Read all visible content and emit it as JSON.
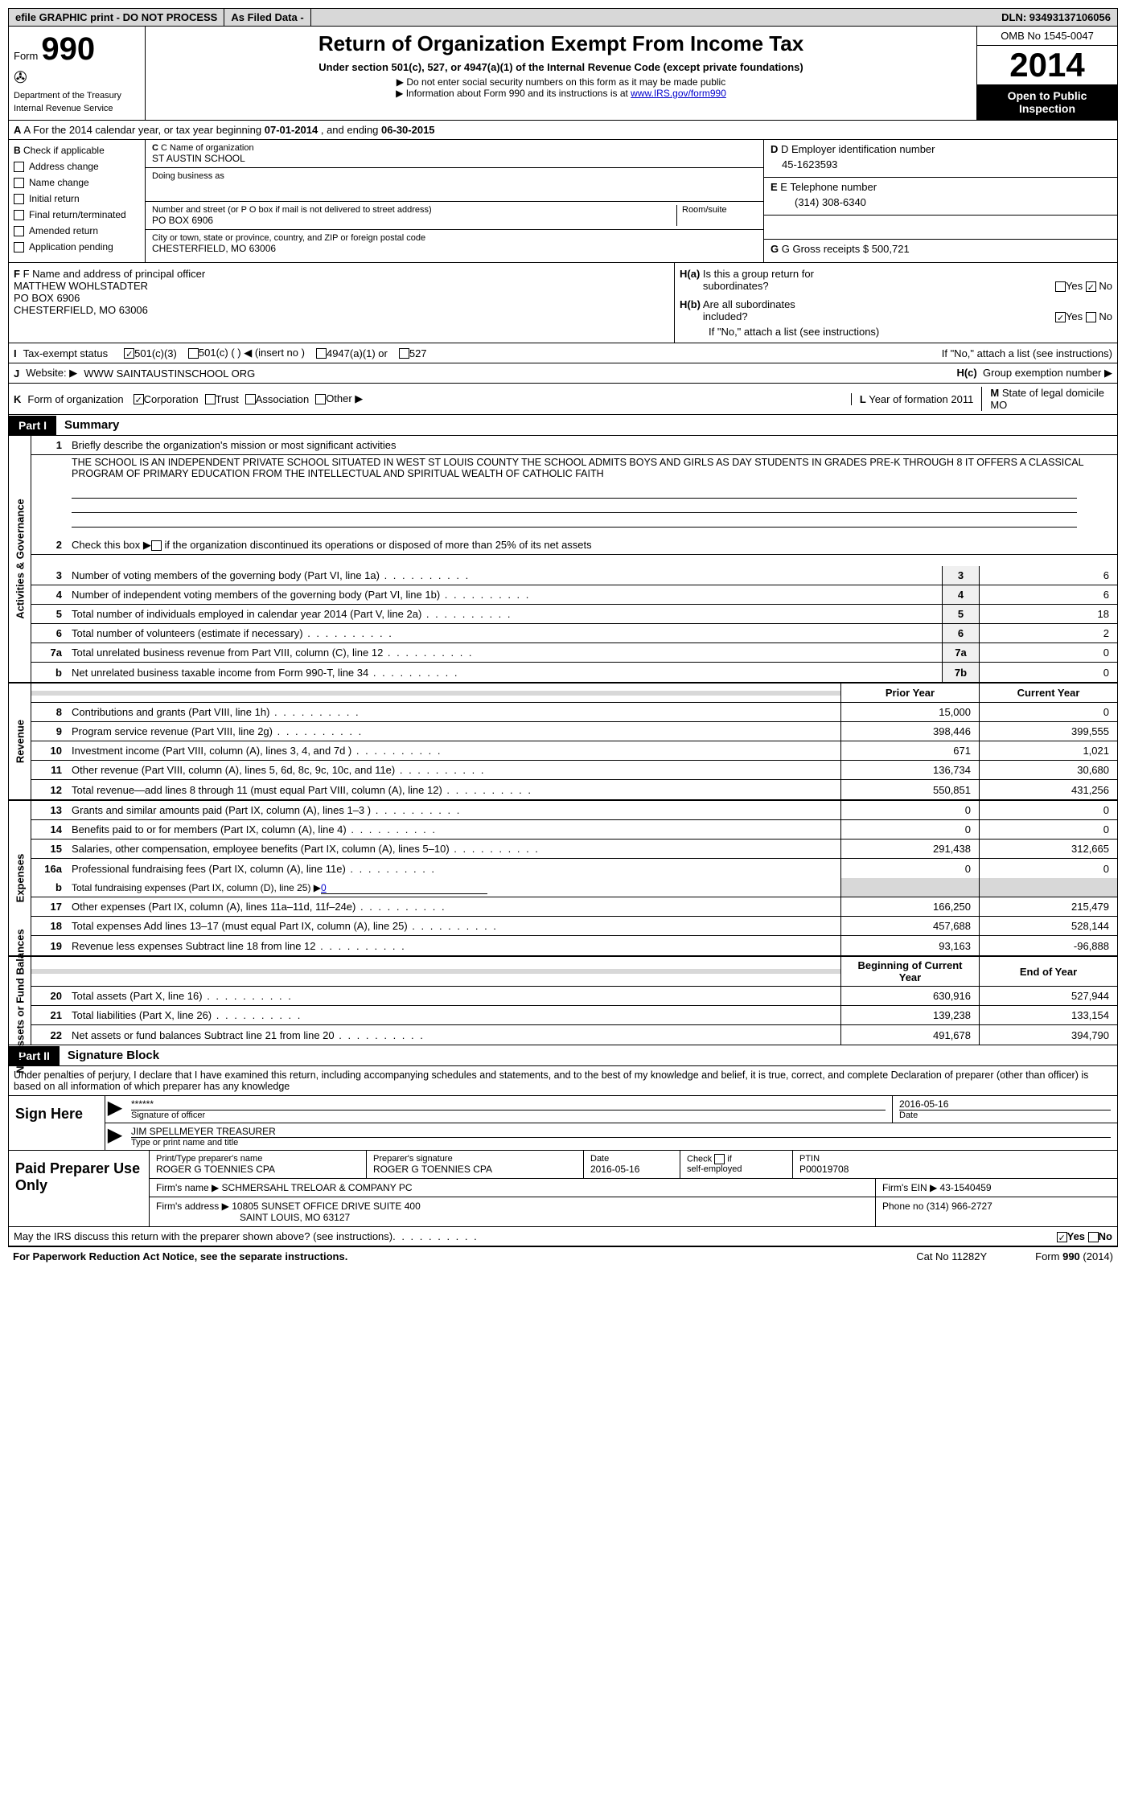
{
  "topbar": {
    "efile": "efile GRAPHIC print - DO NOT PROCESS",
    "asfiled": "As Filed Data -",
    "dln": "DLN: 93493137106056"
  },
  "header": {
    "form_label": "Form",
    "form_num": "990",
    "dept1": "Department of the Treasury",
    "dept2": "Internal Revenue Service",
    "title": "Return of Organization Exempt From Income Tax",
    "sub": "Under section 501(c), 527, or 4947(a)(1) of the Internal Revenue Code (except private foundations)",
    "note1": "▶ Do not enter social security numbers on this form as it may be made public",
    "note2_a": "▶ Information about Form 990 and its instructions is at ",
    "note2_link": "www.IRS.gov/form990",
    "omb": "OMB No 1545-0047",
    "year": "2014",
    "inspection": "Open to Public Inspection"
  },
  "section_a": {
    "text_a": "A For the 2014 calendar year, or tax year beginning ",
    "begin": "07-01-2014",
    "text_b": " , and ending ",
    "end": "06-30-2015"
  },
  "section_b": {
    "label": "B",
    "check": "Check if applicable",
    "items": [
      "Address change",
      "Name change",
      "Initial return",
      "Final return/terminated",
      "Amended return",
      "Application pending"
    ]
  },
  "section_c": {
    "label_c": "C Name of organization",
    "name": "ST AUSTIN SCHOOL",
    "dba_label": "Doing business as",
    "addr_label": "Number and street (or P O  box if mail is not delivered to street address)",
    "room_label": "Room/suite",
    "addr": "PO BOX 6906",
    "city_label": "City or town, state or province, country, and ZIP or foreign postal code",
    "city": "CHESTERFIELD, MO  63006"
  },
  "section_d": {
    "label": "D Employer identification number",
    "ein": "45-1623593",
    "tel_label": "E Telephone number",
    "tel": "(314) 308-6340",
    "gross_label": "G Gross receipts $ ",
    "gross": "500,721"
  },
  "section_f": {
    "label": "F  Name and address of principal officer",
    "name": "MATTHEW WOHLSTADTER",
    "addr1": "PO BOX 6906",
    "addr2": "CHESTERFIELD, MO  63006"
  },
  "section_h": {
    "ha": "H(a)  Is this a group return for subordinates?",
    "hb": "H(b)  Are all subordinates included?",
    "hb_note": "If \"No,\" attach a list  (see instructions)",
    "hc": "Group exemption number ▶"
  },
  "row_i": {
    "label": "I",
    "text": "Tax-exempt status",
    "opts": [
      "501(c)(3)",
      "501(c) (  ) ◀ (insert no )",
      "4947(a)(1) or",
      "527"
    ]
  },
  "row_j": {
    "label": "J",
    "text": "Website: ▶",
    "url": "WWW SAINTAUSTINSCHOOL ORG"
  },
  "row_k": {
    "label": "K",
    "text": "Form of organization",
    "opts": [
      "Corporation",
      "Trust",
      "Association",
      "Other ▶"
    ],
    "l_label": "L",
    "l_text": "Year of formation",
    "l_val": "2011",
    "m_label": "M",
    "m_text": "State of legal domicile",
    "m_val": "MO"
  },
  "part1": {
    "tag": "Part I",
    "title": "Summary"
  },
  "summary": {
    "gov_label": "Activities & Governance",
    "rev_label": "Revenue",
    "exp_label": "Expenses",
    "net_label": "Net Assets or Fund Balances",
    "mission_label": "Briefly describe the organization's mission or most significant activities",
    "mission": "THE SCHOOL IS AN INDEPENDENT PRIVATE SCHOOL SITUATED IN WEST ST LOUIS COUNTY  THE SCHOOL ADMITS BOYS AND GIRLS AS DAY STUDENTS IN GRADES PRE-K THROUGH 8  IT OFFERS A CLASSICAL PROGRAM OF PRIMARY EDUCATION FROM THE INTELLECTUAL AND SPIRITUAL WEALTH OF CATHOLIC FAITH",
    "line2": "Check this box ▶    if the organization discontinued its operations or disposed of more than 25% of its net assets",
    "gov_rows": [
      {
        "n": "3",
        "t": "Number of voting members of the governing body (Part VI, line 1a)",
        "b": "3",
        "v": "6"
      },
      {
        "n": "4",
        "t": "Number of independent voting members of the governing body (Part VI, line 1b)",
        "b": "4",
        "v": "6"
      },
      {
        "n": "5",
        "t": "Total number of individuals employed in calendar year 2014 (Part V, line 2a)",
        "b": "5",
        "v": "18"
      },
      {
        "n": "6",
        "t": "Total number of volunteers (estimate if necessary)",
        "b": "6",
        "v": "2"
      },
      {
        "n": "7a",
        "t": "Total unrelated business revenue from Part VIII, column (C), line 12",
        "b": "7a",
        "v": "0"
      },
      {
        "n": "b",
        "t": "Net unrelated business taxable income from Form 990-T, line 34",
        "b": "7b",
        "v": "0"
      }
    ],
    "py_label": "Prior Year",
    "cy_label": "Current Year",
    "rev_rows": [
      {
        "n": "8",
        "t": "Contributions and grants (Part VIII, line 1h)",
        "p": "15,000",
        "c": "0"
      },
      {
        "n": "9",
        "t": "Program service revenue (Part VIII, line 2g)",
        "p": "398,446",
        "c": "399,555"
      },
      {
        "n": "10",
        "t": "Investment income (Part VIII, column (A), lines 3, 4, and 7d )",
        "p": "671",
        "c": "1,021"
      },
      {
        "n": "11",
        "t": "Other revenue (Part VIII, column (A), lines 5, 6d, 8c, 9c, 10c, and 11e)",
        "p": "136,734",
        "c": "30,680"
      },
      {
        "n": "12",
        "t": "Total revenue—add lines 8 through 11 (must equal Part VIII, column (A), line 12)",
        "p": "550,851",
        "c": "431,256"
      }
    ],
    "exp_rows": [
      {
        "n": "13",
        "t": "Grants and similar amounts paid (Part IX, column (A), lines 1–3 )",
        "p": "0",
        "c": "0"
      },
      {
        "n": "14",
        "t": "Benefits paid to or for members (Part IX, column (A), line 4)",
        "p": "0",
        "c": "0"
      },
      {
        "n": "15",
        "t": "Salaries, other compensation, employee benefits (Part IX, column (A), lines 5–10)",
        "p": "291,438",
        "c": "312,665"
      },
      {
        "n": "16a",
        "t": "Professional fundraising fees (Part IX, column (A), line 11e)",
        "p": "0",
        "c": "0"
      }
    ],
    "line_b": "Total fundraising expenses (Part IX, column (D), line 25) ▶",
    "line_b_val": "0",
    "exp_rows2": [
      {
        "n": "17",
        "t": "Other expenses (Part IX, column (A), lines 11a–11d, 11f–24e)",
        "p": "166,250",
        "c": "215,479"
      },
      {
        "n": "18",
        "t": "Total expenses  Add lines 13–17 (must equal Part IX, column (A), line 25)",
        "p": "457,688",
        "c": "528,144"
      },
      {
        "n": "19",
        "t": "Revenue less expenses  Subtract line 18 from line 12",
        "p": "93,163",
        "c": "-96,888"
      }
    ],
    "boy_label": "Beginning of Current Year",
    "eoy_label": "End of Year",
    "net_rows": [
      {
        "n": "20",
        "t": "Total assets (Part X, line 16)",
        "p": "630,916",
        "c": "527,944"
      },
      {
        "n": "21",
        "t": "Total liabilities (Part X, line 26)",
        "p": "139,238",
        "c": "133,154"
      },
      {
        "n": "22",
        "t": "Net assets or fund balances  Subtract line 21 from line 20",
        "p": "491,678",
        "c": "394,790"
      }
    ]
  },
  "part2": {
    "tag": "Part II",
    "title": "Signature Block",
    "perjury": "Under penalties of perjury, I declare that I have examined this return, including accompanying schedules and statements, and to the best of my knowledge and belief, it is true, correct, and complete  Declaration of preparer (other than officer) is based on all information of which preparer has any knowledge"
  },
  "sign": {
    "label": "Sign Here",
    "stars": "******",
    "sig_label": "Signature of officer",
    "date": "2016-05-16",
    "date_label": "Date",
    "name": "JIM SPELLMEYER TREASURER",
    "name_label": "Type or print name and title"
  },
  "prep": {
    "label": "Paid Preparer Use Only",
    "h1": "Print/Type preparer's name",
    "h2": "Preparer's signature",
    "h3": "Date",
    "h4": "Check     if self-employed",
    "h5": "PTIN",
    "name": "ROGER G TOENNIES CPA",
    "sig": "ROGER G TOENNIES CPA",
    "date": "2016-05-16",
    "ptin": "P00019708",
    "firm_label": "Firm's name    ▶",
    "firm": "SCHMERSAHL TRELOAR & COMPANY PC",
    "ein_label": "Firm's EIN ▶",
    "ein": "43-1540459",
    "addr_label": "Firm's address ▶",
    "addr1": "10805 SUNSET OFFICE DRIVE SUITE 400",
    "addr2": "SAINT LOUIS, MO  63127",
    "phone_label": "Phone no",
    "phone": "(314) 966-2727"
  },
  "footer": {
    "discuss": "May the IRS discuss this return with the preparer shown above? (see instructions)",
    "yes": "Yes",
    "no": "No",
    "pra": "For Paperwork Reduction Act Notice, see the separate instructions.",
    "cat": "Cat No 11282Y",
    "form": "Form 990 (2014)"
  }
}
